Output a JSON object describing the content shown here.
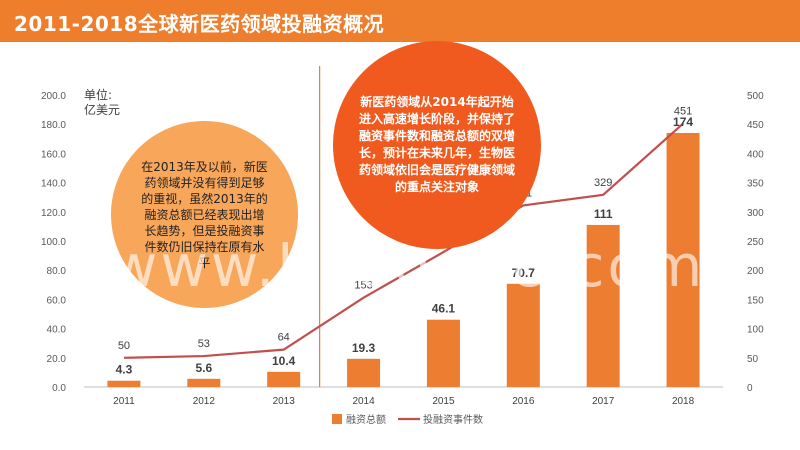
{
  "header": {
    "title": "2011-2018全球新医药领域投融资概况"
  },
  "unit_label": "单位:\n亿美元",
  "notes": {
    "left": "在2013年及以前，新医药领域并没有得到足够的重视，虽然2013年的融资总额已经表现出增长趋势，但是投融资事件数仍旧保持在原有水平",
    "right": "新医药领域从2014年起开始进入高速增长阶段，并保持了融资事件数和融资总额的双增长，预计在未来几年，生物医药领域依旧会是医疗健康领域的重点关注对象"
  },
  "watermark": "www.baogao8.com",
  "colors": {
    "header": "#ee7e2c",
    "bar": "#ed7d31",
    "line": "#c0504d",
    "divider": "#ed7d31"
  },
  "chart_data": {
    "type": "bar",
    "categories": [
      "2011",
      "2012",
      "2013",
      "2014",
      "2015",
      "2016",
      "2017",
      "2018"
    ],
    "series": [
      {
        "name": "融资总额",
        "type": "bar",
        "axis": "left",
        "values": [
          4.3,
          5.6,
          10.4,
          19.3,
          46.1,
          70.7,
          111,
          174
        ],
        "labels": [
          "4.3",
          "5.6",
          "10.4",
          "19.3",
          "46.1",
          "70.7",
          "111",
          "174"
        ]
      },
      {
        "name": "投融资事件数",
        "type": "line",
        "axis": "right",
        "values": [
          50,
          53,
          64,
          153,
          231,
          311,
          329,
          451
        ],
        "labels": [
          "50",
          "53",
          "64",
          "153",
          "231",
          "311",
          "329",
          "451"
        ]
      }
    ],
    "y_left": {
      "min": 0,
      "max": 200,
      "ticks": [
        "0.0",
        "20.0",
        "40.0",
        "60.0",
        "80.0",
        "100.0",
        "120.0",
        "140.0",
        "160.0",
        "180.0",
        "200.0"
      ]
    },
    "y_right": {
      "min": 0,
      "max": 500,
      "ticks": [
        "0",
        "50",
        "100",
        "150",
        "200",
        "250",
        "300",
        "350",
        "400",
        "450",
        "500"
      ]
    },
    "legend_position": "bottom-center",
    "grid": false
  }
}
